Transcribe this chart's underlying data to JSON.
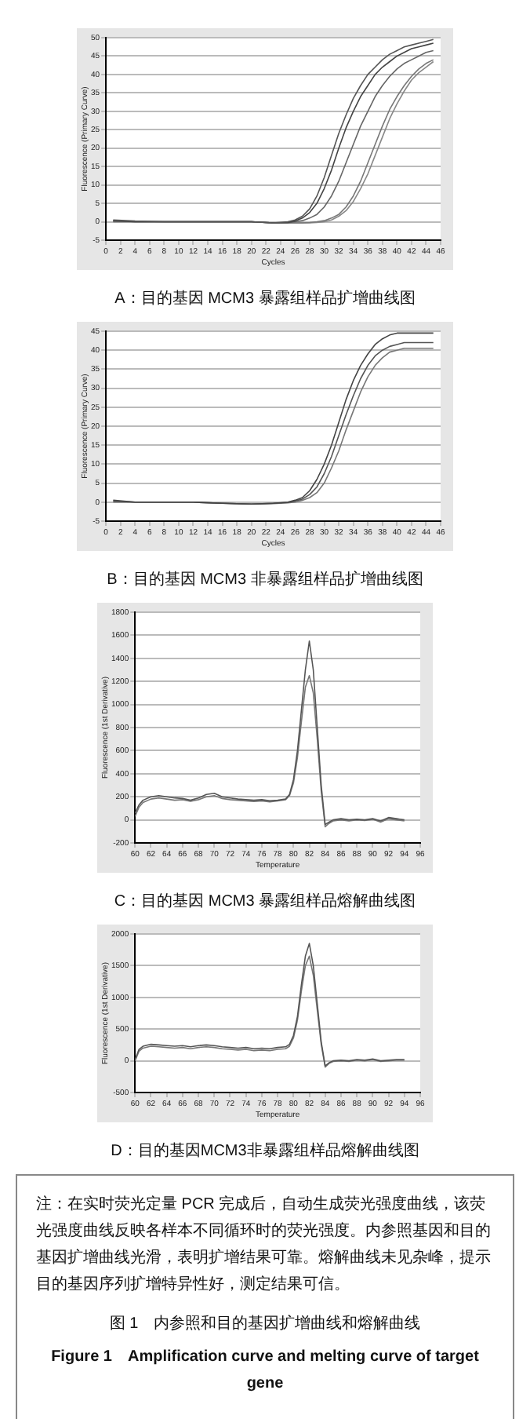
{
  "chart_data": [
    {
      "type": "line",
      "title": "A：目的基因 MCM3 暴露组样品扩增曲线图",
      "xlabel": "Cycles",
      "ylabel": "Fluorescence (Primary Curve)",
      "x": [
        1,
        4,
        8,
        12,
        16,
        20,
        23,
        25,
        26,
        27,
        28,
        29,
        30,
        31,
        32,
        33,
        34,
        35,
        36,
        37,
        38,
        39,
        40,
        41,
        42,
        43,
        44,
        45
      ],
      "series": [
        {
          "color": "#555555",
          "values": [
            0.5,
            0.2,
            0,
            0,
            0,
            0,
            -0.3,
            0,
            0.5,
            1.5,
            3.5,
            7,
            12,
            18,
            24,
            29,
            33.5,
            37,
            40,
            42,
            44,
            45.5,
            46.5,
            47.5,
            48,
            48.5,
            49,
            49.5
          ]
        },
        {
          "color": "#444444",
          "values": [
            0.3,
            0,
            0,
            0,
            0,
            0,
            -0.3,
            -0.2,
            0.2,
            1,
            2.5,
            5,
            9,
            14,
            20,
            25.5,
            30,
            34,
            37,
            40,
            42,
            43.5,
            45,
            46,
            47,
            47.5,
            48,
            48.5
          ]
        },
        {
          "color": "#666666",
          "values": [
            0.2,
            0,
            0,
            0,
            0,
            0,
            -0.3,
            -0.3,
            0,
            0.3,
            1,
            2,
            4,
            7,
            11,
            16,
            21,
            26,
            30,
            34,
            37,
            39.5,
            41.5,
            43,
            44,
            45,
            46,
            46.5
          ]
        },
        {
          "color": "#777777",
          "values": [
            0,
            0,
            0,
            0,
            0,
            0,
            -0.3,
            -0.3,
            -0.3,
            -0.3,
            -0.2,
            0,
            0.3,
            1,
            2,
            4,
            7,
            11,
            16,
            21,
            26,
            30.5,
            34,
            37,
            39.5,
            41.5,
            43,
            44
          ]
        },
        {
          "color": "#888888",
          "values": [
            0,
            0,
            0,
            0,
            0,
            0,
            -0.3,
            -0.3,
            -0.3,
            -0.3,
            -0.3,
            -0.2,
            0,
            0.5,
            1.5,
            3,
            5.5,
            9,
            13,
            18,
            23,
            28,
            32,
            35.5,
            38.5,
            40.5,
            42,
            43.5
          ]
        }
      ],
      "xlim": [
        0,
        46
      ],
      "xticks": [
        0,
        2,
        4,
        6,
        8,
        10,
        12,
        14,
        16,
        18,
        20,
        22,
        24,
        26,
        28,
        30,
        32,
        34,
        36,
        38,
        40,
        42,
        44,
        46
      ],
      "ylim": [
        -5,
        50
      ],
      "yticks": [
        -5,
        0,
        5,
        10,
        15,
        20,
        25,
        30,
        35,
        40,
        45,
        50
      ],
      "grid": "y",
      "line_style": "solid"
    },
    {
      "type": "line",
      "title": "B：目的基因 MCM3 非暴露组样品扩增曲线图",
      "xlabel": "Cycles",
      "ylabel": "Fluorescence (Primary Curve)",
      "x": [
        1,
        4,
        8,
        12,
        16,
        20,
        23,
        25,
        26,
        27,
        28,
        29,
        30,
        31,
        32,
        33,
        34,
        35,
        36,
        37,
        38,
        39,
        40,
        41,
        42,
        43,
        44,
        45
      ],
      "series": [
        {
          "color": "#444444",
          "values": [
            0.5,
            0,
            0,
            0,
            -0.3,
            -0.5,
            -0.3,
            0,
            0.5,
            1.2,
            3,
            6,
            10,
            15,
            21,
            27,
            32,
            36,
            39,
            41.5,
            43,
            44,
            44.5,
            44.5,
            44.5,
            44.5,
            44.5,
            44.5
          ]
        },
        {
          "color": "#555555",
          "values": [
            0.3,
            0,
            0,
            0,
            -0.3,
            -0.5,
            -0.3,
            -0.1,
            0.3,
            0.8,
            2,
            4,
            7.5,
            12,
            17.5,
            23,
            28,
            32.5,
            36,
            38.5,
            40,
            41,
            41.5,
            42,
            42,
            42,
            42,
            42
          ]
        },
        {
          "color": "#777777",
          "values": [
            0,
            0,
            0,
            0,
            -0.3,
            -0.5,
            -0.4,
            -0.2,
            0,
            0.5,
            1.2,
            2.5,
            5,
            9,
            13.5,
            19,
            24,
            29,
            33,
            36,
            38,
            39.5,
            40,
            40.5,
            40.5,
            40.5,
            40.5,
            40.5
          ]
        }
      ],
      "xlim": [
        0,
        46
      ],
      "xticks": [
        0,
        2,
        4,
        6,
        8,
        10,
        12,
        14,
        16,
        18,
        20,
        22,
        24,
        26,
        28,
        30,
        32,
        34,
        36,
        38,
        40,
        42,
        44,
        46
      ],
      "ylim": [
        -5,
        45
      ],
      "yticks": [
        -5,
        0,
        5,
        10,
        15,
        20,
        25,
        30,
        35,
        40,
        45
      ],
      "grid": "y",
      "line_style": "solid"
    },
    {
      "type": "line",
      "title": "C：目的基因 MCM3 暴露组样品熔解曲线图",
      "xlabel": "Temperature",
      "ylabel": "Fluorescence (1st Derivative)",
      "x": [
        60,
        60.5,
        61,
        62,
        63,
        64,
        65,
        66,
        67,
        68,
        69,
        70,
        71,
        72,
        73,
        74,
        75,
        76,
        77,
        78,
        79,
        79.5,
        80,
        80.5,
        81,
        81.5,
        82,
        82.5,
        83,
        83.5,
        84,
        84.5,
        85,
        86,
        87,
        88,
        89,
        90,
        91,
        92,
        93,
        94
      ],
      "series": [
        {
          "color": "#555555",
          "values": [
            60,
            130,
            170,
            200,
            210,
            200,
            190,
            185,
            170,
            190,
            220,
            230,
            200,
            190,
            180,
            175,
            170,
            175,
            165,
            170,
            180,
            220,
            350,
            600,
            950,
            1300,
            1550,
            1300,
            800,
            300,
            -40,
            -20,
            0,
            10,
            0,
            5,
            0,
            10,
            -10,
            20,
            10,
            0
          ]
        },
        {
          "color": "#777777",
          "values": [
            30,
            110,
            150,
            180,
            190,
            180,
            170,
            175,
            160,
            175,
            200,
            210,
            185,
            175,
            170,
            165,
            160,
            165,
            155,
            165,
            175,
            210,
            320,
            540,
            850,
            1150,
            1250,
            1100,
            700,
            250,
            -60,
            -30,
            -10,
            0,
            -10,
            0,
            -5,
            5,
            -20,
            10,
            0,
            -10
          ]
        }
      ],
      "xlim": [
        60,
        96
      ],
      "xticks": [
        60,
        62,
        64,
        66,
        68,
        70,
        72,
        74,
        76,
        78,
        80,
        82,
        84,
        86,
        88,
        90,
        92,
        94,
        96
      ],
      "ylim": [
        -200,
        1800
      ],
      "yticks": [
        -200,
        0,
        200,
        400,
        600,
        800,
        1000,
        1200,
        1400,
        1600,
        1800
      ],
      "grid": "y",
      "line_style": "solid"
    },
    {
      "type": "line",
      "title": "D：目的基因MCM3非暴露组样品熔解曲线图",
      "xlabel": "Temperature",
      "ylabel": "Fluorescence (1st Derivative)",
      "x": [
        60,
        60.5,
        61,
        62,
        63,
        64,
        65,
        66,
        67,
        68,
        69,
        70,
        71,
        72,
        73,
        74,
        75,
        76,
        77,
        78,
        79,
        79.5,
        80,
        80.5,
        81,
        81.5,
        82,
        82.5,
        83,
        83.5,
        84,
        84.5,
        85,
        86,
        87,
        88,
        89,
        90,
        91,
        92,
        93,
        94
      ],
      "series": [
        {
          "color": "#555555",
          "values": [
            20,
            180,
            230,
            260,
            250,
            240,
            230,
            240,
            220,
            240,
            250,
            240,
            220,
            210,
            200,
            210,
            190,
            200,
            190,
            210,
            220,
            260,
            400,
            700,
            1200,
            1650,
            1850,
            1500,
            900,
            300,
            -80,
            -30,
            0,
            10,
            0,
            20,
            10,
            30,
            0,
            10,
            20,
            20
          ]
        },
        {
          "color": "#777777",
          "values": [
            0,
            150,
            200,
            230,
            220,
            210,
            200,
            210,
            190,
            210,
            220,
            210,
            190,
            180,
            170,
            180,
            160,
            170,
            160,
            180,
            190,
            230,
            360,
            640,
            1100,
            1500,
            1650,
            1350,
            800,
            260,
            -100,
            -40,
            -10,
            0,
            -10,
            10,
            0,
            20,
            -10,
            0,
            10,
            10
          ]
        }
      ],
      "xlim": [
        60,
        96
      ],
      "xticks": [
        60,
        62,
        64,
        66,
        68,
        70,
        72,
        74,
        76,
        78,
        80,
        82,
        84,
        86,
        88,
        90,
        92,
        94,
        96
      ],
      "ylim": [
        -500,
        2000
      ],
      "yticks": [
        -500,
        0,
        500,
        1000,
        1500,
        2000
      ],
      "grid": "y",
      "line_style": "solid",
      "annotations": [
        "注：在实时荧光定量 PCR 完成后，自动生成荧光强度曲线，该荧光强度曲线反映各样本不同循环时的荧光强度。内参照基因和目的基因扩增曲线光滑，表明扩增结果可靠。熔解曲线未见杂峰，提示目的基因序列扩增特异性好，测定结果可信。",
        "图 1　内参照和目的基因扩增曲线和熔解曲线",
        "Figure 1　Amplification curve and melting curve of target gene"
      ]
    }
  ]
}
